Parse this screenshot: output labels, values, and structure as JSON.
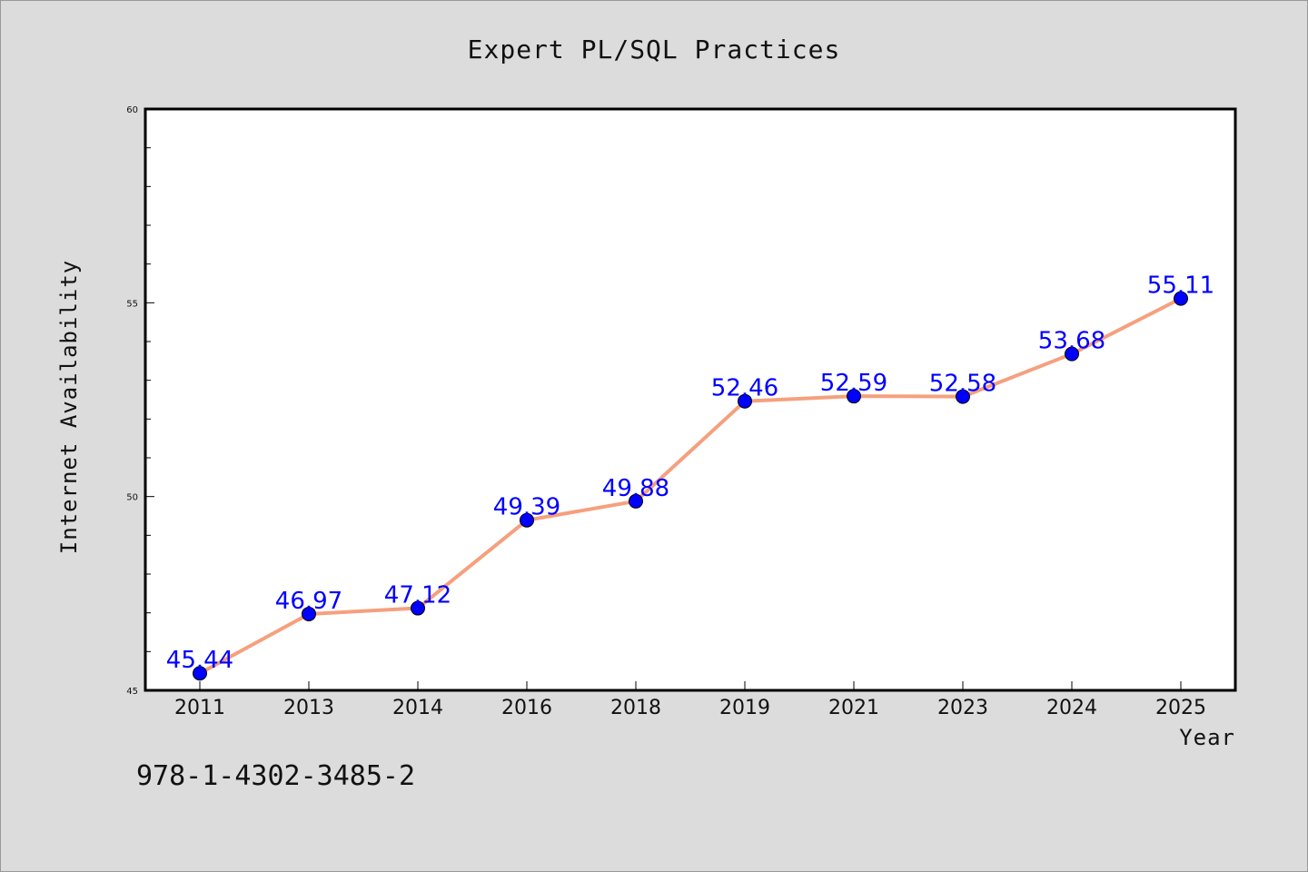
{
  "chart_data": {
    "type": "line",
    "title": "Expert PL/SQL Practices",
    "xlabel": "Year",
    "ylabel": "Internet Availability",
    "categories": [
      "2011",
      "2013",
      "2014",
      "2016",
      "2018",
      "2019",
      "2021",
      "2023",
      "2024",
      "2025"
    ],
    "series": [
      {
        "values": [
          45.44,
          46.97,
          47.12,
          49.39,
          49.88,
          52.46,
          52.59,
          52.58,
          53.68,
          55.11
        ],
        "labels": [
          "45.44",
          "46.97",
          "47.12",
          "49.39",
          "49.88",
          "52.46",
          "52.59",
          "52.58",
          "53.68",
          "55.11"
        ]
      }
    ],
    "ylim": [
      45,
      60
    ],
    "yticks": [
      "45",
      "50",
      "55",
      "60"
    ],
    "grid": false,
    "line_color": "#f5a07e",
    "marker_color": "#0000ff",
    "label_color": "#0000ff",
    "background": "#dcdcdc",
    "plot_background": "#ffffff"
  },
  "footer": {
    "isbn": "978-1-4302-3485-2"
  }
}
